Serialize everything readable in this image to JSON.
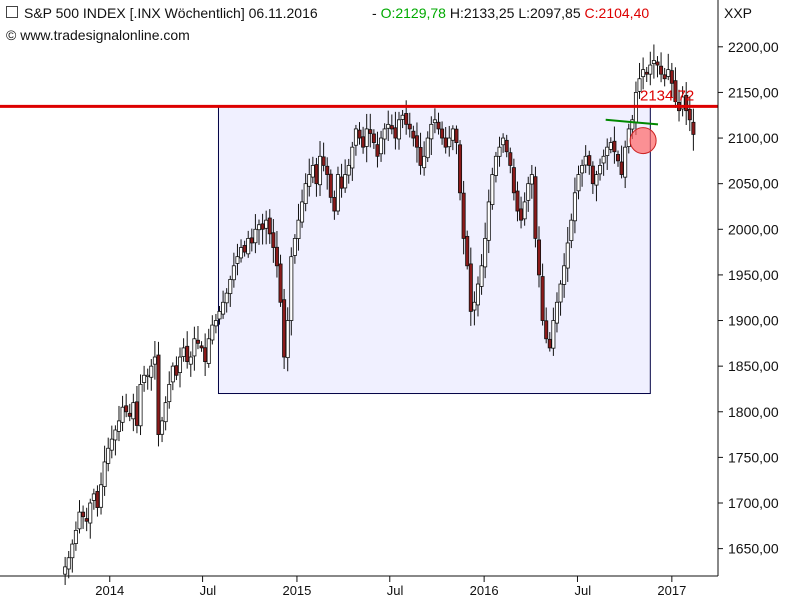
{
  "header": {
    "menu_icon": "window-square-icon",
    "title": "S&P 500 INDEX [.INX  Wöchentlich] 06.11.2016",
    "dash": " - ",
    "open": "O:2129,78",
    "high": "H:2133,25",
    "low": "L:2097,85",
    "close": "C:2104,40",
    "symbol": "XXP",
    "copyright": "© www.tradesignalonline.com"
  },
  "colors": {
    "open": "#00aa00",
    "close": "#dd0000",
    "resistance": "#dd0000",
    "support": "#008800",
    "range_box_fill": "#f0f0ff",
    "range_box_stroke": "#000044",
    "candle_up": "#ffffff",
    "candle_down": "#8b1a1a",
    "marker": "#ff6666"
  },
  "chart_data": {
    "type": "candlestick",
    "title": "S&P 500 INDEX [.INX  Wöchentlich] 06.11.2016",
    "ylim": [
      1620,
      2225
    ],
    "y_ticks": [
      "2200,00",
      "2150,00",
      "2100,00",
      "2050,00",
      "2000,00",
      "1950,00",
      "1900,00",
      "1850,00",
      "1800,00",
      "1750,00",
      "1700,00",
      "1650,00"
    ],
    "y_tick_values": [
      2200,
      2150,
      2100,
      2050,
      2000,
      1950,
      1900,
      1850,
      1800,
      1750,
      1700,
      1650
    ],
    "x_ticks": [
      {
        "label": "2014",
        "date": "2014-01-01"
      },
      {
        "label": "Jul",
        "date": "2014-07-01"
      },
      {
        "label": "2015",
        "date": "2015-01-01"
      },
      {
        "label": "Jul",
        "date": "2015-07-01"
      },
      {
        "label": "2016",
        "date": "2016-01-01"
      },
      {
        "label": "Jul",
        "date": "2016-07-01"
      },
      {
        "label": "2017",
        "date": "2017-01-01"
      }
    ],
    "x_range": [
      "2013-06-01",
      "2017-04-01"
    ],
    "resistance": {
      "value": 2134.72,
      "label": "2134,72"
    },
    "range_box": {
      "x_start": "2014-08-01",
      "x_end": "2016-11-20",
      "y_low": 1820,
      "y_high": 2134.72
    },
    "support_line": {
      "x_start": "2016-08-25",
      "x_end": "2016-12-05",
      "y_start": 2120,
      "y_end": 2115
    },
    "highlight": {
      "date": "2016-11-06",
      "value": 2106
    },
    "weekly_closes": [
      1630,
      1640,
      1655,
      1670,
      1690,
      1685,
      1680,
      1700,
      1710,
      1695,
      1720,
      1745,
      1760,
      1770,
      1780,
      1790,
      1805,
      1800,
      1795,
      1810,
      1785,
      1830,
      1840,
      1840,
      1850,
      1860,
      1775,
      1790,
      1810,
      1830,
      1850,
      1840,
      1860,
      1870,
      1855,
      1860,
      1880,
      1875,
      1870,
      1855,
      1880,
      1895,
      1900,
      1910,
      1920,
      1930,
      1945,
      1960,
      1970,
      1980,
      1975,
      1990,
      1985,
      2000,
      2005,
      2000,
      2010,
      1995,
      1980,
      1960,
      1920,
      1860,
      1900,
      1970,
      1990,
      2010,
      2030,
      2050,
      2060,
      2070,
      2050,
      2080,
      2070,
      2060,
      2035,
      2020,
      2060,
      2045,
      2060,
      2070,
      2090,
      2110,
      2100,
      2090,
      2110,
      2105,
      2095,
      2080,
      2100,
      2110,
      2115,
      2110,
      2100,
      2120,
      2125,
      2115,
      2110,
      2100,
      2090,
      2070,
      2080,
      2100,
      2115,
      2120,
      2110,
      2100,
      2090,
      2100,
      2110,
      2095,
      2040,
      1990,
      1960,
      1910,
      1920,
      1940,
      1960,
      1990,
      2030,
      2060,
      2080,
      2090,
      2100,
      2085,
      2070,
      2040,
      2020,
      2010,
      2030,
      2050,
      2060,
      1990,
      1950,
      1900,
      1880,
      1870,
      1900,
      1920,
      1940,
      1960,
      1985,
      2010,
      2040,
      2060,
      2070,
      2080,
      2070,
      2050,
      2060,
      2070,
      2080,
      2090,
      2095,
      2085,
      2075,
      2060,
      2090,
      2110,
      2120,
      2150,
      2165,
      2175,
      2170,
      2180,
      2185,
      2180,
      2170,
      2165,
      2175,
      2160,
      2140,
      2130,
      2145,
      2130,
      2120,
      2104
    ]
  }
}
